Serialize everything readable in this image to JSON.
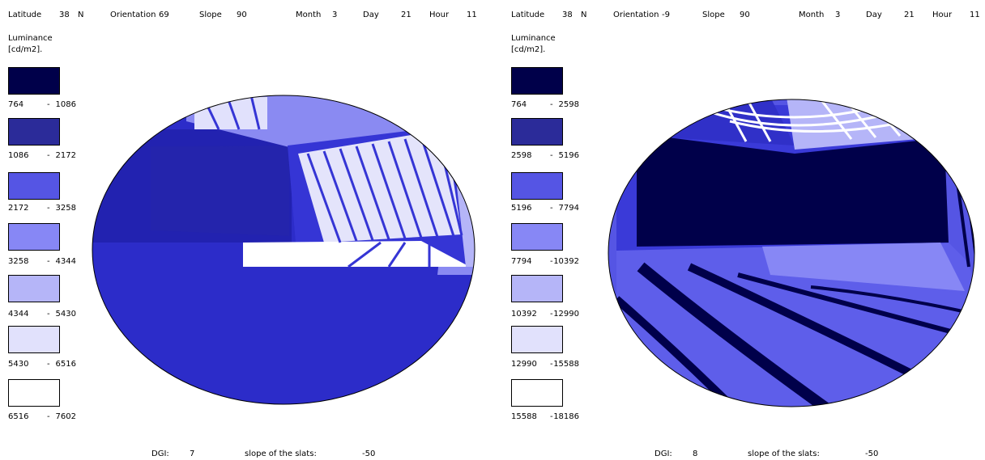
{
  "colors": [
    "#00004a",
    "#2b2b99",
    "#5555e4",
    "#8787f5",
    "#b5b5f8",
    "#e1e1fc",
    "#ffffff"
  ],
  "field_colors": {
    "dark": "#00004a",
    "mid": "#2b2b99",
    "main": "#2c2cc9",
    "blue": "#5555e4",
    "light": "#8787f5",
    "pale": "#b5b5f8",
    "white": "#ffffff"
  },
  "panels": [
    {
      "header": {
        "latitude_label": "Latitude",
        "latitude": "38",
        "hemisphere": "N",
        "orientation_label": "Orientation",
        "orientation": "69",
        "slope_label": "Slope",
        "slope": "90",
        "month_label": "Month",
        "month": "3",
        "day_label": "Day",
        "day": "21",
        "hour_label": "Hour",
        "hour": "11"
      },
      "legend": {
        "title_line1": "Luminance",
        "title_line2": "[cd/m2].",
        "ranges": [
          {
            "low": "764",
            "dash": "-",
            "high": "1086"
          },
          {
            "low": "1086",
            "dash": "-",
            "high": "2172"
          },
          {
            "low": "2172",
            "dash": "-",
            "high": "3258"
          },
          {
            "low": "3258",
            "dash": "-",
            "high": "4344"
          },
          {
            "low": "4344",
            "dash": "-",
            "high": "5430"
          },
          {
            "low": "5430",
            "dash": "-",
            "high": "6516"
          },
          {
            "low": "6516",
            "dash": "-",
            "high": "7602"
          }
        ]
      },
      "footer": {
        "dgi_label": "DGI:",
        "dgi": "7",
        "slats_label": "slope of the slats:",
        "slats": "-50"
      }
    },
    {
      "header": {
        "latitude_label": "Latitude",
        "latitude": "38",
        "hemisphere": "N",
        "orientation_label": "Orientation",
        "orientation": "-9",
        "slope_label": "Slope",
        "slope": "90",
        "month_label": "Month",
        "month": "3",
        "day_label": "Day",
        "day": "21",
        "hour_label": "Hour",
        "hour": "11"
      },
      "legend": {
        "title_line1": "Luminance",
        "title_line2": "[cd/m2].",
        "ranges": [
          {
            "low": "764",
            "dash": "-",
            "high": "2598"
          },
          {
            "low": "2598",
            "dash": "-",
            "high": "5196"
          },
          {
            "low": "5196",
            "dash": "-",
            "high": "7794"
          },
          {
            "low": "7794",
            "dash": "-",
            "high": "10392"
          },
          {
            "low": "10392",
            "dash": "-",
            "high": "12990"
          },
          {
            "low": "12990",
            "dash": "-",
            "high": "15588"
          },
          {
            "low": "15588",
            "dash": "-",
            "high": "18186"
          }
        ]
      },
      "footer": {
        "dgi_label": "DGI:",
        "dgi": "8",
        "slats_label": "slope of the slats:",
        "slats": "-50"
      }
    }
  ]
}
